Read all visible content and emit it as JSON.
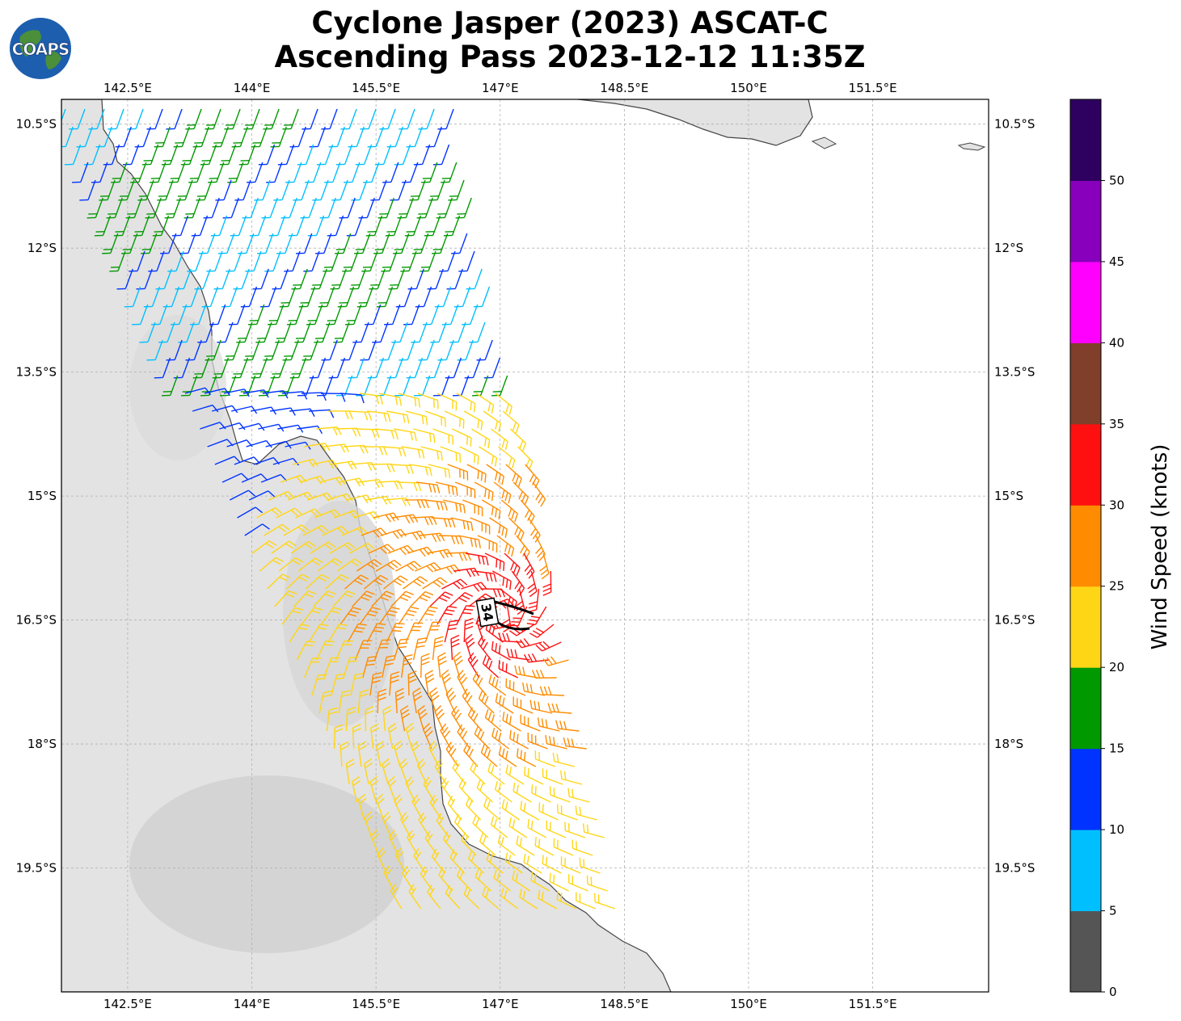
{
  "title": {
    "line1": "Cyclone Jasper (2023) ASCAT-C",
    "line2": "Ascending Pass 2023-12-12 11:35Z"
  },
  "logo": {
    "text": "COAPS"
  },
  "map": {
    "lon_range": [
      141.7,
      152.9
    ],
    "lat_range": [
      -21.0,
      -10.2
    ],
    "lon_ticks": [
      "142.5°E",
      "144°E",
      "145.5°E",
      "147°E",
      "148.5°E",
      "150°E",
      "151.5°E"
    ],
    "lat_ticks": [
      "10.5°S",
      "12°S",
      "13.5°S",
      "15°S",
      "16.5°S",
      "18°S",
      "19.5°S"
    ],
    "grid": true,
    "contour_label": "34",
    "land_color": "#e6e6e6",
    "ocean_color": "#ffffff"
  },
  "colorbar": {
    "label": "Wind Speed (knots)",
    "ticks": [
      "0",
      "5",
      "10",
      "15",
      "20",
      "25",
      "30",
      "35",
      "40",
      "45",
      "50"
    ],
    "bins": [
      {
        "min": 0,
        "max": 5,
        "color": "#555555"
      },
      {
        "min": 5,
        "max": 10,
        "color": "#00bfff"
      },
      {
        "min": 10,
        "max": 15,
        "color": "#0033ff"
      },
      {
        "min": 15,
        "max": 20,
        "color": "#009900"
      },
      {
        "min": 20,
        "max": 25,
        "color": "#ffd616"
      },
      {
        "min": 25,
        "max": 30,
        "color": "#ff8c00"
      },
      {
        "min": 30,
        "max": 35,
        "color": "#ff1010"
      },
      {
        "min": 35,
        "max": 40,
        "color": "#7f3f2a"
      },
      {
        "min": 40,
        "max": 45,
        "color": "#ff00ff"
      },
      {
        "min": 45,
        "max": 50,
        "color": "#8800bb"
      },
      {
        "min": 50,
        "max": 55,
        "color": "#2e0060"
      }
    ]
  }
}
